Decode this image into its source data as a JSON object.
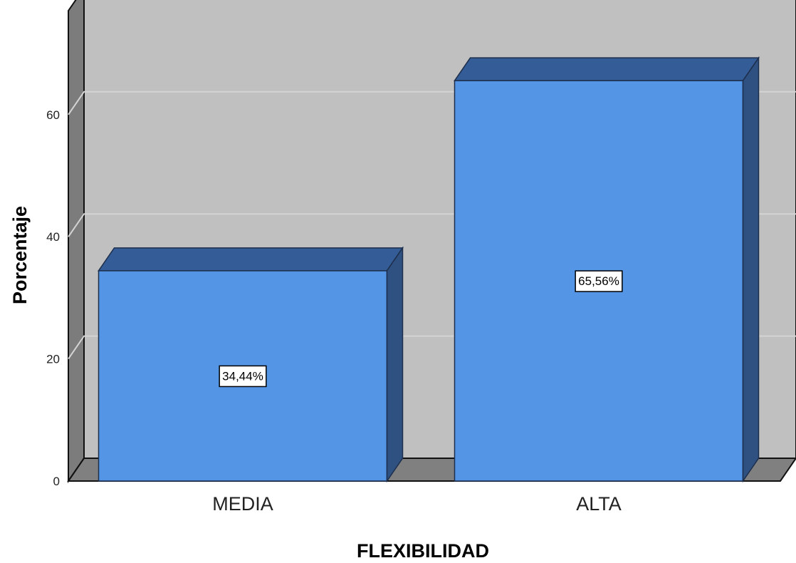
{
  "chart_data": {
    "type": "bar",
    "title": "",
    "xlabel": "FLEXIBILIDAD",
    "ylabel": "Porcentaje",
    "categories": [
      "MEDIA",
      "ALTA"
    ],
    "values": [
      34.44,
      65.56
    ],
    "data_labels": [
      "34,44%",
      "65,56%"
    ],
    "ylim": [
      0,
      77
    ],
    "yticks": [
      0,
      20,
      40,
      60
    ],
    "grid": true,
    "legend": "none",
    "style": "3d"
  },
  "colors": {
    "bar_front": "#5495e5",
    "bar_top": "#345d97",
    "bar_side": "#2f5181",
    "back_wall": "#c0c0c0",
    "left_wall": "#7c7c7c",
    "floor": "#808080",
    "gridline": "#d4d4d4"
  }
}
